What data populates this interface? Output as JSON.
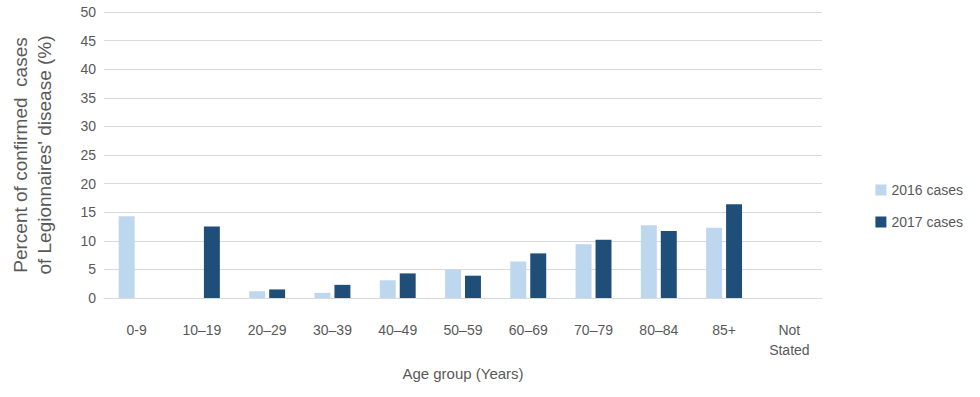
{
  "chart_data": {
    "type": "bar",
    "x_label": "Age group (Years)",
    "y_label": "Percent of confirmed  cases\nof Legionnaires' disease (%)",
    "categories": [
      "0-9",
      "10–19",
      "20–29",
      "30–39",
      "40–49",
      "50–59",
      "60–69",
      "70–79",
      "80–84",
      "85+",
      "Not Stated"
    ],
    "series": [
      {
        "name": "2016 cases",
        "color": "#bdd7ee",
        "values": [
          14.3,
          0,
          1.2,
          0.9,
          3.1,
          5.0,
          6.4,
          9.4,
          12.7,
          12.3,
          0
        ]
      },
      {
        "name": "2017 cases",
        "color": "#1f4e79",
        "values": [
          0,
          12.5,
          1.5,
          2.3,
          4.3,
          3.9,
          7.8,
          10.2,
          11.7,
          16.4,
          0
        ]
      }
    ],
    "ylim": [
      0,
      50
    ],
    "yticks": [
      0,
      5,
      10,
      15,
      20,
      25,
      30,
      35,
      40,
      45,
      50
    ],
    "grid": true,
    "legend": "right"
  }
}
